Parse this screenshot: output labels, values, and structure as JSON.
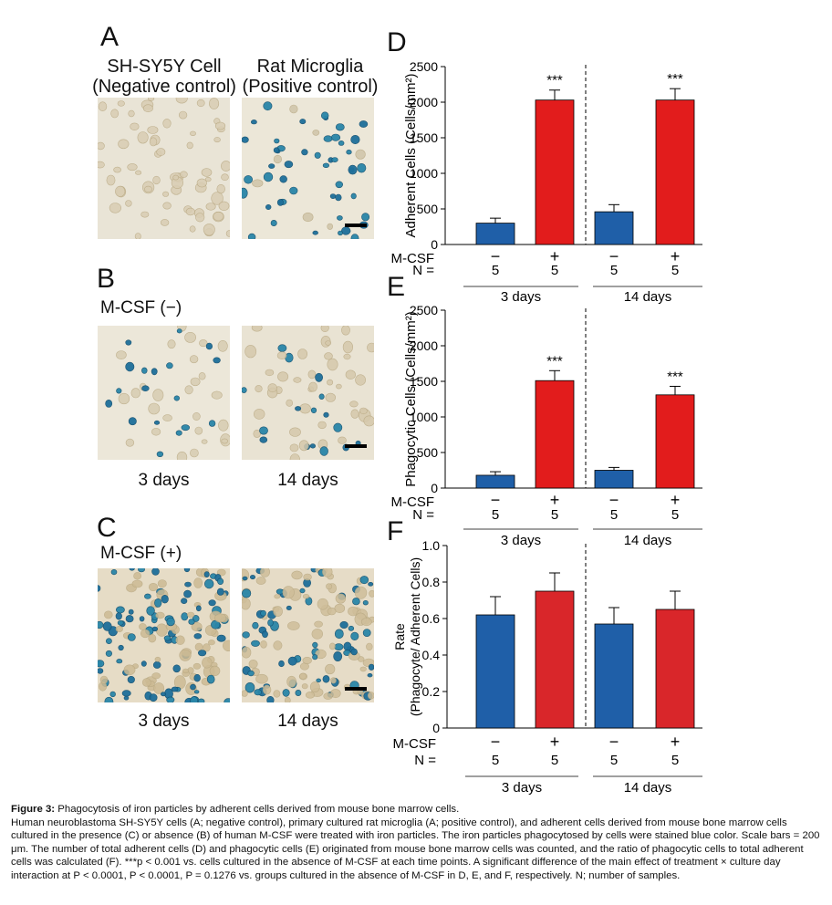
{
  "panels": {
    "A": {
      "letter": "A",
      "titles": [
        [
          "SH-SY5Y Cell",
          "(Negative control)"
        ],
        [
          "Rat Microglia",
          "(Positive control)"
        ]
      ]
    },
    "B": {
      "letter": "B",
      "condition": "M-CSF (−)",
      "days": [
        "3 days",
        "14 days"
      ]
    },
    "C": {
      "letter": "C",
      "condition": "M-CSF (+)",
      "days": [
        "3 days",
        "14 days"
      ]
    },
    "D": {
      "letter": "D"
    },
    "E": {
      "letter": "E"
    },
    "F": {
      "letter": "F"
    }
  },
  "colors": {
    "blue": "#1f5fa8",
    "red": "#e21c1c",
    "red_f": "#d9262a",
    "cell_stain": "#1e6f9a",
    "bg_tissue": "#e7e0cf"
  },
  "chart_data": [
    {
      "id": "D",
      "type": "bar",
      "ylabel": "Adherent Cells (Cells/mm²)",
      "ylim": [
        0,
        2500
      ],
      "yticks": [
        "0",
        "500",
        "1000",
        "1500",
        "2000",
        "2500"
      ],
      "categories": [
        "3 days M-CSF −",
        "3 days M-CSF +",
        "14 days M-CSF −",
        "14 days M-CSF +"
      ],
      "values": [
        300,
        2030,
        460,
        2030
      ],
      "errors": [
        70,
        140,
        100,
        160
      ],
      "significance": [
        "",
        "***",
        "",
        "***"
      ],
      "row_labels": {
        "mcsf": "M-CSF",
        "n": "N ="
      },
      "mcsf": [
        "−",
        "+",
        "−",
        "+"
      ],
      "n": [
        "5",
        "5",
        "5",
        "5"
      ],
      "groups": [
        "3 days",
        "14 days"
      ]
    },
    {
      "id": "E",
      "type": "bar",
      "ylabel": "Phagocytic Cells (Cells/mm²)",
      "ylim": [
        0,
        2500
      ],
      "yticks": [
        "0",
        "500",
        "1000",
        "1500",
        "2000",
        "2500"
      ],
      "categories": [
        "3 days M-CSF −",
        "3 days M-CSF +",
        "14 days M-CSF −",
        "14 days M-CSF +"
      ],
      "values": [
        180,
        1510,
        250,
        1310
      ],
      "errors": [
        50,
        140,
        40,
        120
      ],
      "significance": [
        "",
        "***",
        "",
        "***"
      ],
      "row_labels": {
        "mcsf": "M-CSF",
        "n": "N ="
      },
      "mcsf": [
        "−",
        "+",
        "−",
        "+"
      ],
      "n": [
        "5",
        "5",
        "5",
        "5"
      ],
      "groups": [
        "3 days",
        "14 days"
      ]
    },
    {
      "id": "F",
      "type": "bar",
      "ylabel": [
        "Rate",
        "(Phagocyte/ Adherent Cells)"
      ],
      "ylim": [
        0,
        1.0
      ],
      "yticks": [
        "0",
        "0.2",
        "0.4",
        "0.6",
        "0.8",
        "1.0"
      ],
      "categories": [
        "3 days M-CSF −",
        "3 days M-CSF +",
        "14 days M-CSF −",
        "14 days M-CSF +"
      ],
      "values": [
        0.62,
        0.75,
        0.57,
        0.65
      ],
      "errors": [
        0.1,
        0.1,
        0.09,
        0.1
      ],
      "significance": [
        "",
        "",
        "",
        ""
      ],
      "row_labels": {
        "mcsf": "M-CSF",
        "n": "N ="
      },
      "mcsf": [
        "−",
        "+",
        "−",
        "+"
      ],
      "n": [
        "5",
        "5",
        "5",
        "5"
      ],
      "groups": [
        "3 days",
        "14 days"
      ]
    }
  ],
  "caption": {
    "label": "Figure 3:",
    "title": "Phagocytosis of iron particles by adherent cells derived from mouse bone marrow cells.",
    "body": "Human neuroblastoma SH-SY5Y cells (A; negative control), primary cultured rat microglia (A; positive control), and adherent cells derived from mouse bone marrow cells cultured in the presence (C) or absence (B) of human M-CSF were treated with iron particles. The iron particles phagocytosed by cells were stained blue color. Scale bars = 200 μm. The number of total adherent cells (D) and phagocytic cells (E) originated from mouse bone marrow cells was counted, and the ratio of phagocytic cells to total adherent cells was calculated (F). ***p < 0.001 vs. cells cultured in the absence of M-CSF at each time points. A significant difference of the main effect of treatment × culture day interaction at P < 0.0001, P < 0.0001, P = 0.1276 vs. groups cultured in the absence of M-CSF in D, E, and F, respectively. N; number of samples."
  }
}
